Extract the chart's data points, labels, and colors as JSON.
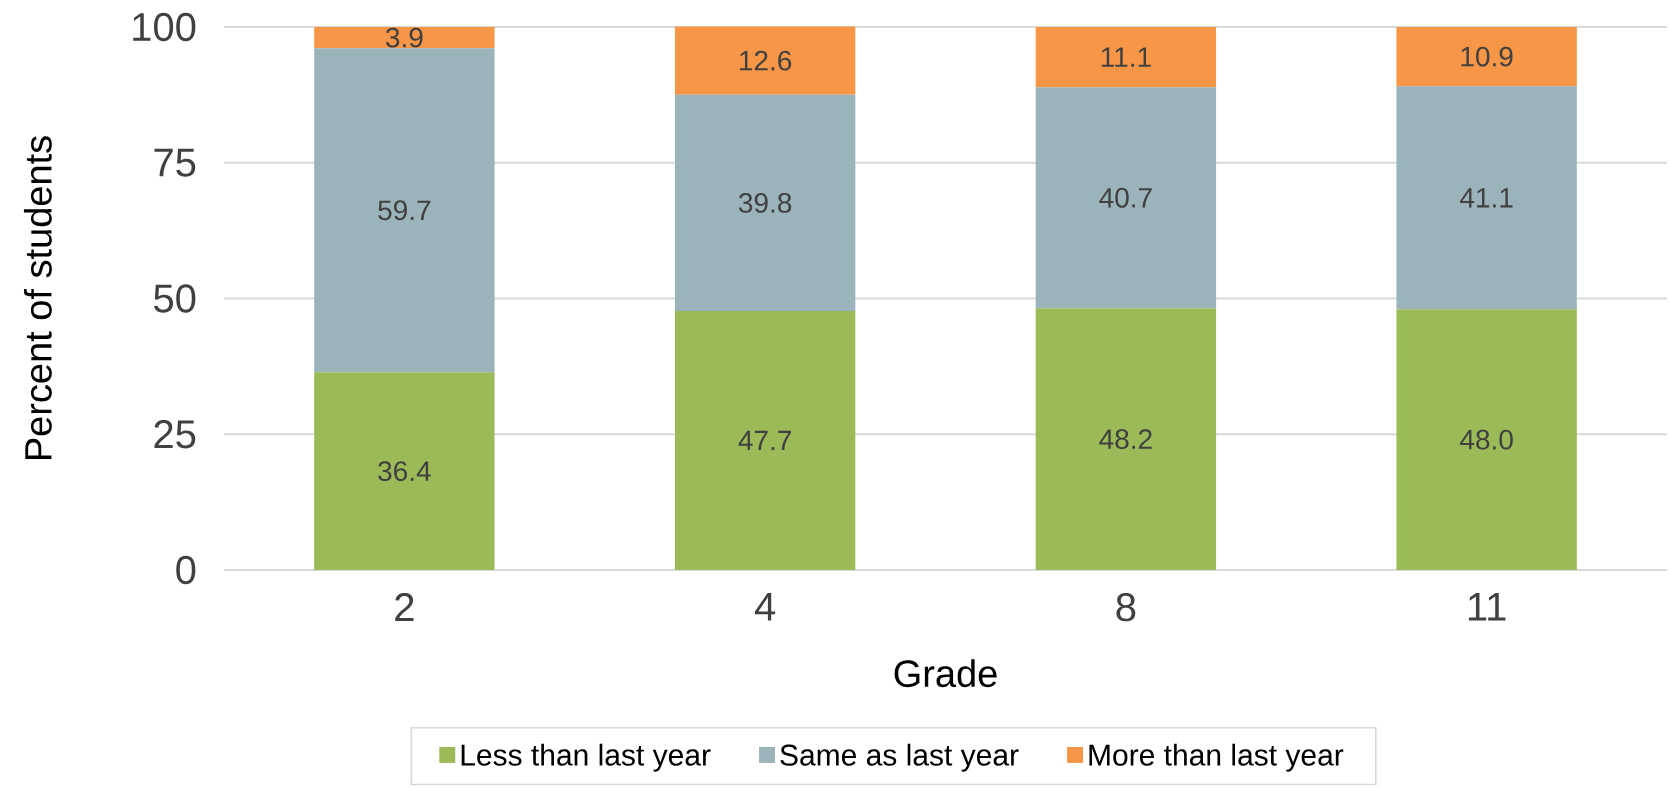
{
  "chart_data": {
    "type": "bar",
    "stacked": true,
    "xlabel": "Grade",
    "ylabel": "Percent of students",
    "categories": [
      "2",
      "4",
      "8",
      "11"
    ],
    "series": [
      {
        "name": "Less than last year",
        "color": "#9bbb59",
        "values": [
          36.4,
          47.7,
          48.2,
          48.0
        ],
        "value_labels": [
          "36.4",
          "47.7",
          "48.2",
          "48.0"
        ]
      },
      {
        "name": "Same as last year",
        "color": "#9bb3bb",
        "values": [
          59.7,
          39.8,
          40.7,
          41.1
        ],
        "value_labels": [
          "59.7",
          "39.8",
          "40.7",
          "41.1"
        ]
      },
      {
        "name": "More than last year",
        "color": "#f79646",
        "values": [
          3.9,
          12.6,
          11.1,
          10.9
        ],
        "value_labels": [
          "3.9",
          "12.6",
          "11.1",
          "10.9"
        ]
      }
    ],
    "ylim": [
      0,
      100
    ],
    "yticks": [
      0,
      25,
      50,
      75,
      100
    ],
    "grid": "y",
    "legend": "bottom"
  }
}
